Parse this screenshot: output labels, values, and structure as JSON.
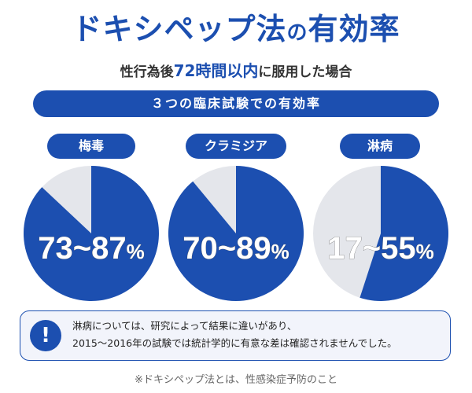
{
  "header": {
    "title_part1": "ドキシペップ法",
    "title_part2": "の",
    "title_part3": "有効率",
    "subtitle_pre": "性行為後",
    "subtitle_highlight": "72時間以内",
    "subtitle_post": "に服用した場合",
    "banner": "３つの臨床試験での有効率"
  },
  "chart_data": {
    "type": "pie",
    "charts": [
      {
        "label": "梅毒",
        "display": "73~87",
        "unit": "%",
        "range": [
          73,
          87
        ]
      },
      {
        "label": "クラミジア",
        "display": "70~89",
        "unit": "%",
        "range": [
          70,
          89
        ]
      },
      {
        "label": "淋病",
        "display": "17~55",
        "unit": "%",
        "range": [
          17,
          55
        ]
      }
    ]
  },
  "colors": {
    "primary": "#1c4fb0",
    "remainder": "#e4e6eb"
  },
  "note": {
    "icon": "exclamation-icon",
    "line1": "淋病については、研究によって結果に違いがあり、",
    "line2": "2015～2016年の試験では統計学的に有意な差は確認されませんでした。"
  },
  "footer": "※ドキシペップ法とは、性感染症予防のこと"
}
